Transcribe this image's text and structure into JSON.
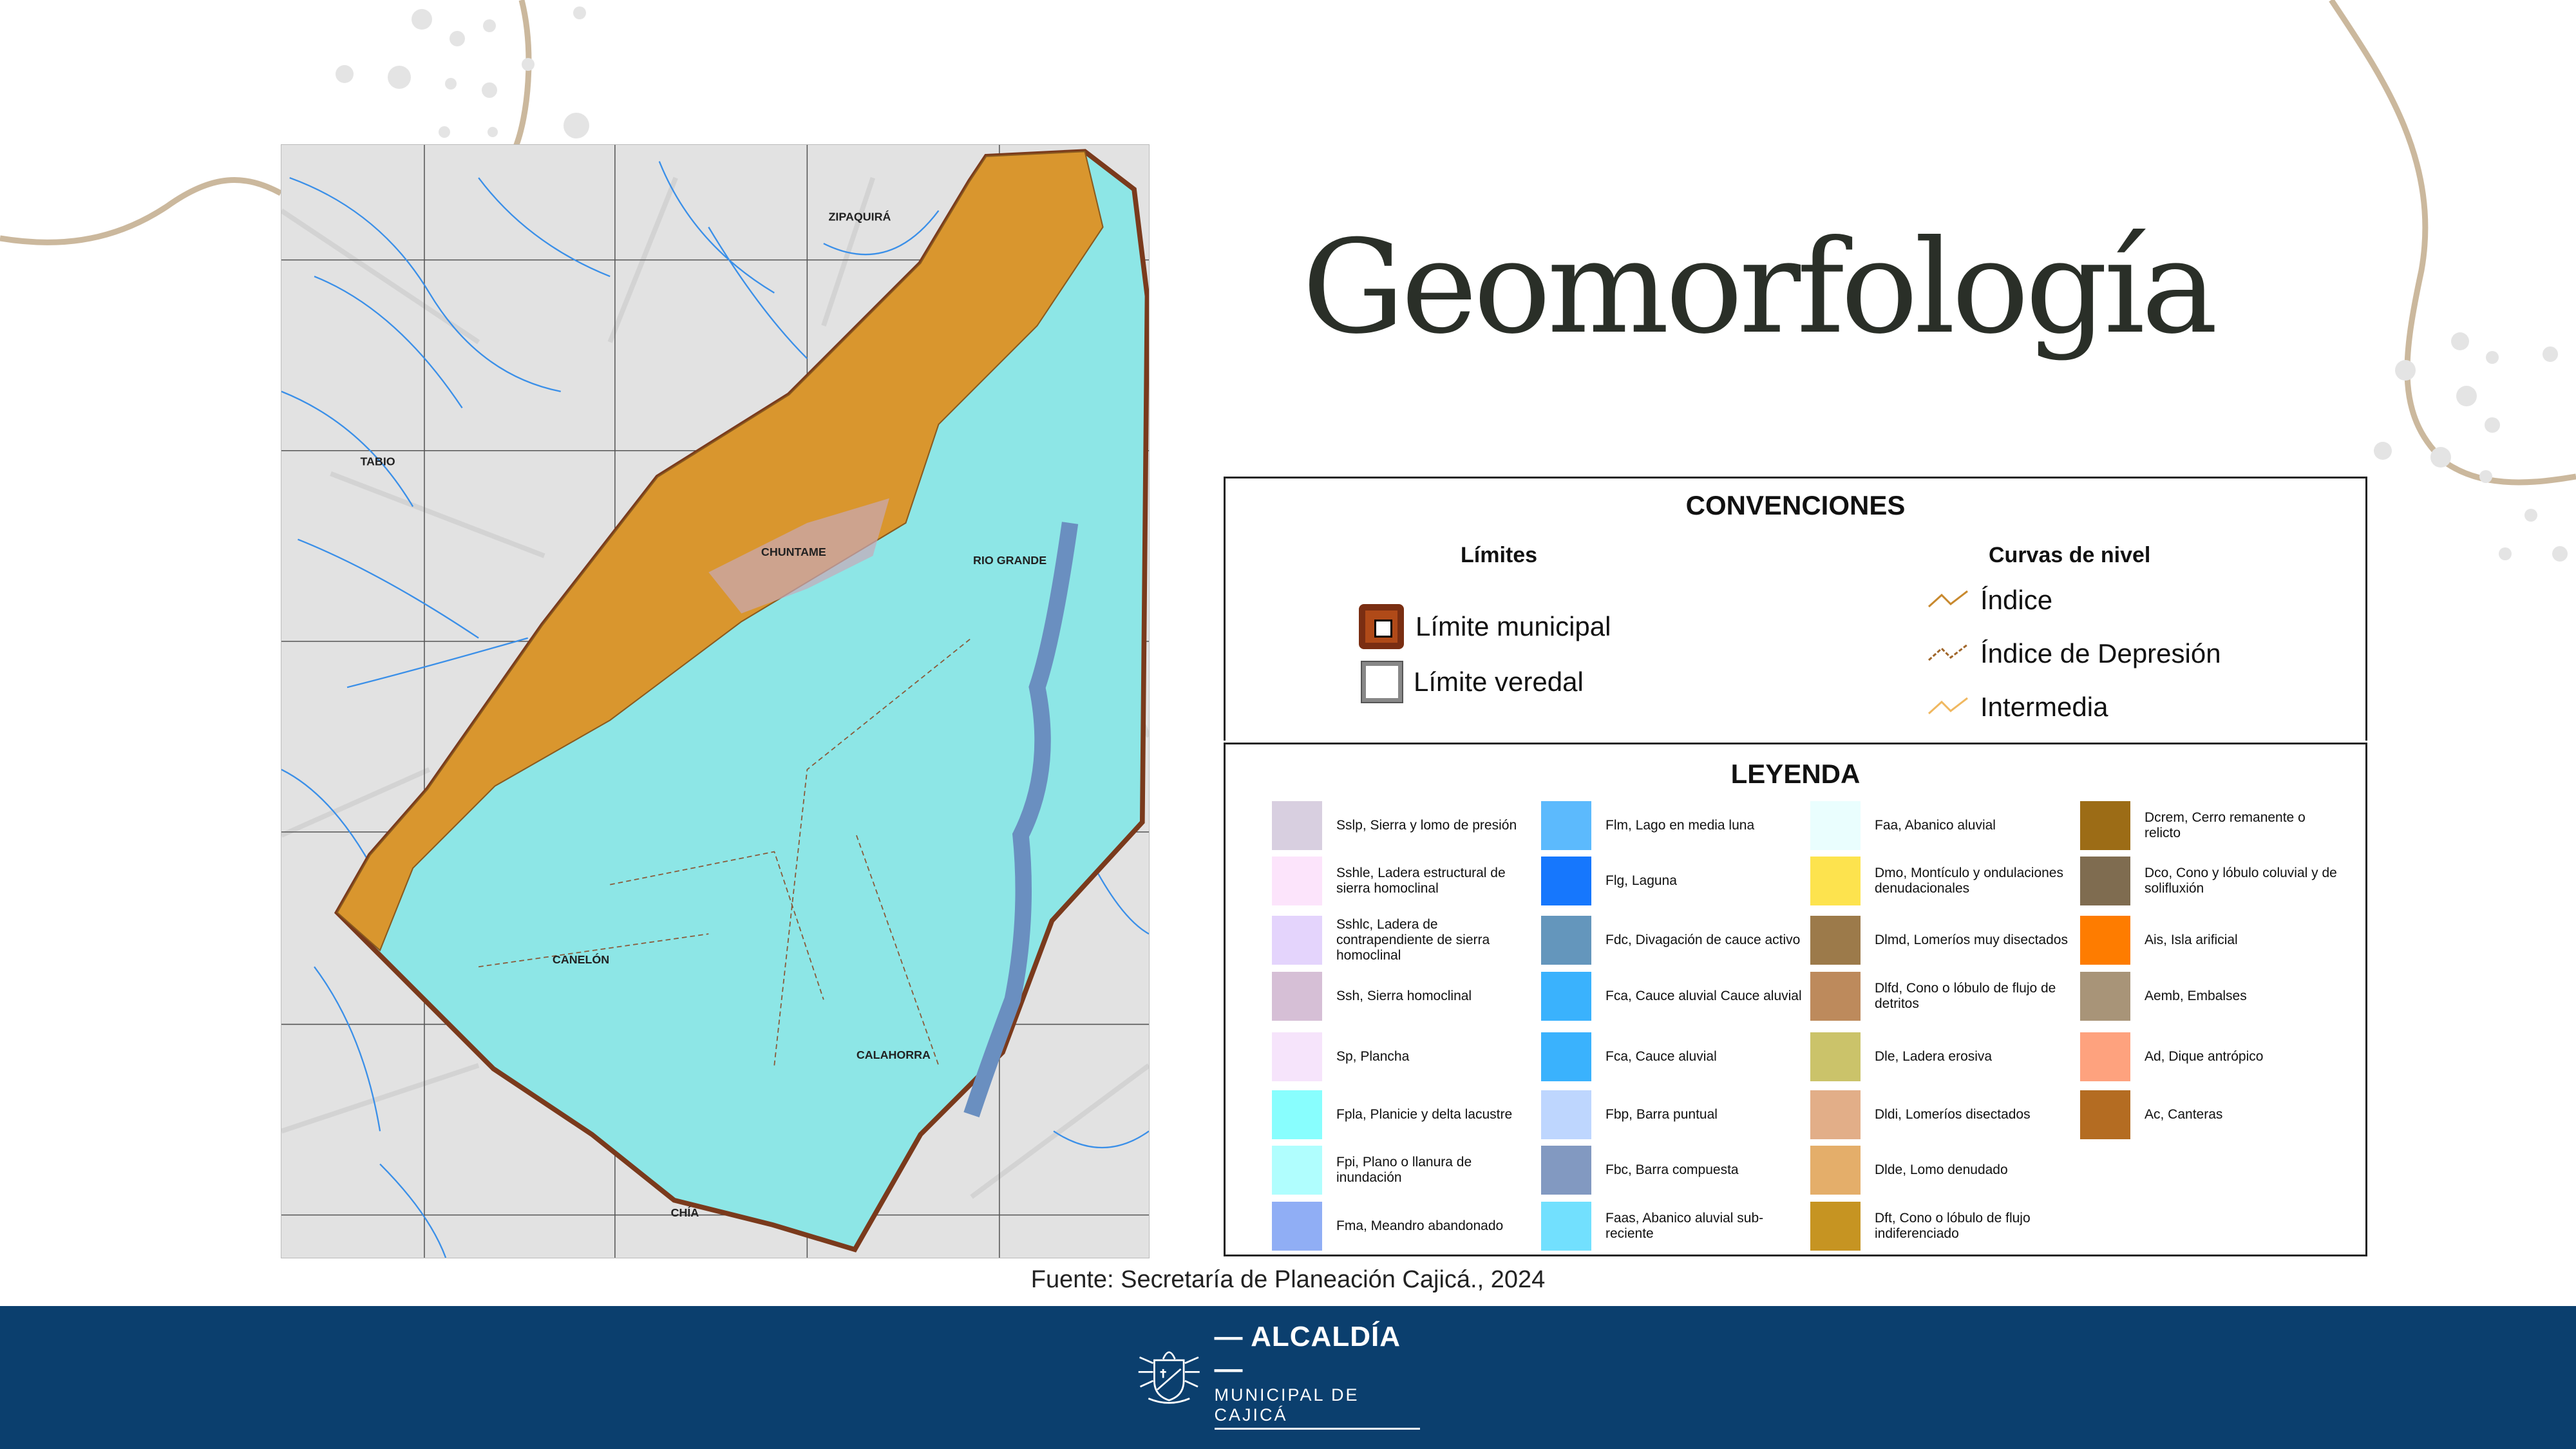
{
  "slide": {
    "title": "Geomorfología",
    "source": "Fuente: Secretaría de Planeación Cajicá., 2024",
    "decor_color": "#cbb89d"
  },
  "map": {
    "labels": {
      "zipaquira": "ZIPAQUIRÁ",
      "tabio": "TABIO",
      "chuntame": "CHUNTAME",
      "rio_grande": "RIO GRANDE",
      "canelon": "CANELÓN",
      "calahorra": "CALAHORRA",
      "chia": "CHÍA"
    },
    "colors": {
      "plain": "#8de6e6",
      "slope": "#d9962e",
      "boundary": "#7a3a1c",
      "river": "#3a8fe8",
      "terrain": "#e3e3e3"
    }
  },
  "convenciones": {
    "title": "CONVENCIONES",
    "limites": {
      "heading": "Límites",
      "items": [
        {
          "label": "Límite municipal",
          "icon": "municipal-boundary-icon"
        },
        {
          "label": "Límite veredal",
          "icon": "vereda-boundary-icon"
        }
      ]
    },
    "curvas": {
      "heading": "Curvas de nivel",
      "items": [
        {
          "label": "Índice",
          "color": "#c8892e"
        },
        {
          "label": "Índice de Depresión",
          "color": "#a0662a"
        },
        {
          "label": "Intermedia",
          "color": "#f0b860"
        }
      ]
    }
  },
  "leyenda": {
    "title": "LEYENDA",
    "columns": [
      [
        {
          "label": "Sslp, Sierra y lomo de presión",
          "color": "#d8cfe0"
        },
        {
          "label": "Sshle, Ladera estructural de sierra homoclinal",
          "color": "#fce4fb"
        },
        {
          "label": "Sshlc, Ladera de contrapendiente de sierra homoclinal",
          "color": "#e4d4fc"
        },
        {
          "label": "Ssh, Sierra homoclinal",
          "color": "#d6bfd6"
        },
        {
          "label": "Sp, Plancha",
          "color": "#f6e4fb"
        },
        {
          "label": "Fpla, Planicie y delta lacustre",
          "color": "#88fefe"
        },
        {
          "label": "Fpi, Plano o llanura de inundación",
          "color": "#b0fefe"
        },
        {
          "label": "Fma, Meandro abandonado",
          "color": "#90aef5"
        }
      ],
      [
        {
          "label": "Flm, Lago en media luna",
          "color": "#5cbafd"
        },
        {
          "label": "Flg, Laguna",
          "color": "#1677fd"
        },
        {
          "label": "Fdc, Divagación de cauce activo",
          "color": "#6496bc"
        },
        {
          "label": "Fca, Cauce aluvial Cauce aluvial",
          "color": "#3ab2fd"
        },
        {
          "label": "Fca, Cauce aluvial",
          "color": "#3ab2fd"
        },
        {
          "label": "Fbp, Barra puntual",
          "color": "#bed6fe"
        },
        {
          "label": "Fbc, Barra compuesta",
          "color": "#8299c1"
        },
        {
          "label": "Faas, Abanico aluvial sub-reciente",
          "color": "#72e0fe"
        }
      ],
      [
        {
          "label": "Faa, Abanico aluvial",
          "color": "#eafefe"
        },
        {
          "label": "Dmo, Montículo y ondulaciones denudacionales",
          "color": "#fde34e"
        },
        {
          "label": "Dlmd, Lomeríos muy disectados",
          "color": "#9c7a4a"
        },
        {
          "label": "Dlfd, Cono o lóbulo de flujo de detritos",
          "color": "#bd8a5c"
        },
        {
          "label": "Dle, Ladera erosiva",
          "color": "#cbc36a"
        },
        {
          "label": "Dldi, Lomeríos disectados",
          "color": "#e2ae88"
        },
        {
          "label": "Dlde, Lomo denudado",
          "color": "#e4ae6a"
        },
        {
          "label": "Dft, Cono o lóbulo de flujo indiferenciado",
          "color": "#c69422"
        }
      ],
      [
        {
          "label": "Dcrem, Cerro remanente o relicto",
          "color": "#9c6c16"
        },
        {
          "label": "Dco, Cono y lóbulo coluvial y de solifluxión",
          "color": "#7f6c50"
        },
        {
          "label": "Ais, Isla arificial",
          "color": "#fe7c00"
        },
        {
          "label": "Aemb, Embalses",
          "color": "#a89478"
        },
        {
          "label": "Ad, Dique antrópico",
          "color": "#fea27e"
        },
        {
          "label": "Ac, Canteras",
          "color": "#b46c22"
        }
      ]
    ]
  },
  "footer": {
    "background": "#0b3f6e",
    "logo_line1": "ALCALDÍA",
    "logo_line2": "MUNICIPAL DE CAJICÁ"
  }
}
